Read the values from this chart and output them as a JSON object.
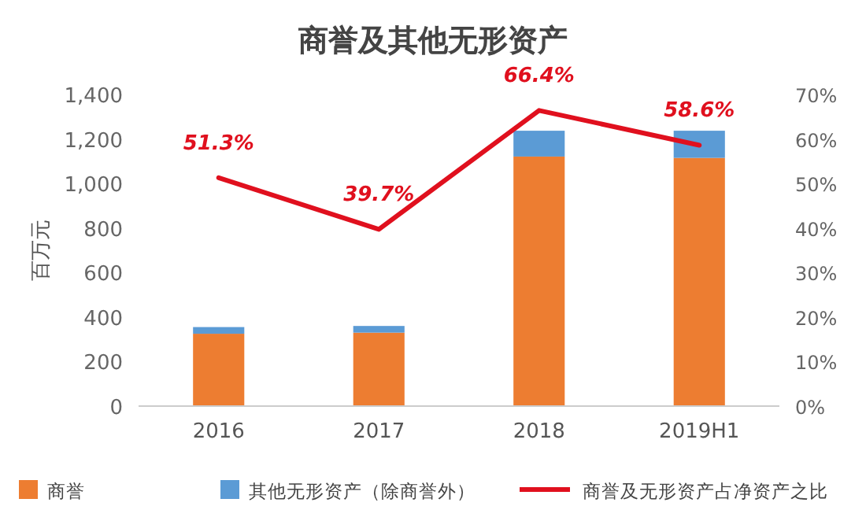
{
  "chart_data": {
    "type": "bar",
    "title": "商誉及其他无形资产",
    "ylabel": "百万元",
    "stacked": true,
    "legend": "bottom",
    "grid": false,
    "categories": [
      "2016",
      "2017",
      "2018",
      "2019H1"
    ],
    "series": [
      {
        "name": "商誉",
        "color": "#ed7d31",
        "values": [
          325,
          330,
          1121,
          1115
        ]
      },
      {
        "name": "其他无形资产（除商誉外）",
        "color": "#5b9bd5",
        "values": [
          30,
          30,
          116,
          122
        ]
      },
      {
        "name": "商誉及无形资产占净资产之比",
        "type": "line",
        "axis": "y2",
        "color": "#e0101e",
        "values": [
          51.3,
          39.7,
          66.4,
          58.6
        ],
        "value_labels": [
          "51.3%",
          "39.7%",
          "66.4%",
          "58.6%"
        ]
      }
    ],
    "ylim": [
      0,
      1400
    ],
    "yticks": [
      0,
      200,
      400,
      600,
      800,
      {
        "value": 1000,
        "label": "1,000"
      },
      {
        "value": 1200,
        "label": "1,200"
      },
      {
        "value": 1400,
        "label": "1,400"
      }
    ],
    "y2lim": [
      0,
      70
    ],
    "y2ticks": [
      {
        "value": 0,
        "label": "0%"
      },
      {
        "value": 10,
        "label": "10%"
      },
      {
        "value": 20,
        "label": "20%"
      },
      {
        "value": 30,
        "label": "30%"
      },
      {
        "value": 40,
        "label": "40%"
      },
      {
        "value": 50,
        "label": "50%"
      },
      {
        "value": 60,
        "label": "60%"
      },
      {
        "value": 70,
        "label": "70%"
      }
    ]
  }
}
